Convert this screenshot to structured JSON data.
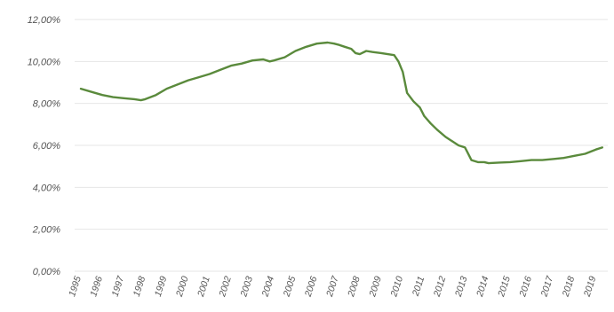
{
  "chart_data": {
    "type": "line",
    "title": "",
    "xlabel": "",
    "ylabel": "",
    "ylim": [
      0,
      12
    ],
    "y_ticks": [
      "0,00%",
      "2,00%",
      "4,00%",
      "6,00%",
      "8,00%",
      "10,00%",
      "12,00%"
    ],
    "y_tick_values": [
      0,
      2,
      4,
      6,
      8,
      10,
      12
    ],
    "x_ticks": [
      "1995",
      "1996",
      "1997",
      "1998",
      "1999",
      "2000",
      "2001",
      "2002",
      "2003",
      "2004",
      "2005",
      "2006",
      "2007",
      "2008",
      "2009",
      "2010",
      "2011",
      "2012",
      "2013",
      "2014",
      "2015",
      "2016",
      "2017",
      "2018",
      "2019"
    ],
    "grid": true,
    "legend": "none",
    "series": [
      {
        "color": "#5a8a3c",
        "points": [
          [
            1995.0,
            8.7
          ],
          [
            1995.5,
            8.55
          ],
          [
            1996.0,
            8.4
          ],
          [
            1996.5,
            8.3
          ],
          [
            1997.0,
            8.25
          ],
          [
            1997.5,
            8.2
          ],
          [
            1997.8,
            8.15
          ],
          [
            1998.0,
            8.2
          ],
          [
            1998.5,
            8.4
          ],
          [
            1999.0,
            8.7
          ],
          [
            1999.5,
            8.9
          ],
          [
            2000.0,
            9.1
          ],
          [
            2000.5,
            9.25
          ],
          [
            2001.0,
            9.4
          ],
          [
            2001.5,
            9.6
          ],
          [
            2002.0,
            9.8
          ],
          [
            2002.5,
            9.9
          ],
          [
            2003.0,
            10.05
          ],
          [
            2003.5,
            10.1
          ],
          [
            2003.8,
            10.0
          ],
          [
            2004.0,
            10.05
          ],
          [
            2004.5,
            10.2
          ],
          [
            2005.0,
            10.5
          ],
          [
            2005.5,
            10.7
          ],
          [
            2006.0,
            10.85
          ],
          [
            2006.5,
            10.9
          ],
          [
            2006.8,
            10.85
          ],
          [
            2007.0,
            10.8
          ],
          [
            2007.3,
            10.7
          ],
          [
            2007.6,
            10.6
          ],
          [
            2007.8,
            10.4
          ],
          [
            2008.0,
            10.35
          ],
          [
            2008.3,
            10.5
          ],
          [
            2008.6,
            10.45
          ],
          [
            2009.0,
            10.4
          ],
          [
            2009.3,
            10.35
          ],
          [
            2009.6,
            10.3
          ],
          [
            2009.8,
            10.0
          ],
          [
            2010.0,
            9.5
          ],
          [
            2010.2,
            8.5
          ],
          [
            2010.5,
            8.1
          ],
          [
            2010.8,
            7.8
          ],
          [
            2011.0,
            7.4
          ],
          [
            2011.3,
            7.05
          ],
          [
            2011.6,
            6.75
          ],
          [
            2012.0,
            6.4
          ],
          [
            2012.3,
            6.2
          ],
          [
            2012.6,
            6.0
          ],
          [
            2012.9,
            5.9
          ],
          [
            2013.0,
            5.7
          ],
          [
            2013.2,
            5.3
          ],
          [
            2013.5,
            5.2
          ],
          [
            2013.8,
            5.2
          ],
          [
            2014.0,
            5.15
          ],
          [
            2014.5,
            5.18
          ],
          [
            2015.0,
            5.2
          ],
          [
            2015.5,
            5.25
          ],
          [
            2016.0,
            5.3
          ],
          [
            2016.5,
            5.3
          ],
          [
            2017.0,
            5.35
          ],
          [
            2017.5,
            5.4
          ],
          [
            2018.0,
            5.5
          ],
          [
            2018.5,
            5.6
          ],
          [
            2019.0,
            5.8
          ],
          [
            2019.3,
            5.9
          ]
        ]
      }
    ]
  }
}
